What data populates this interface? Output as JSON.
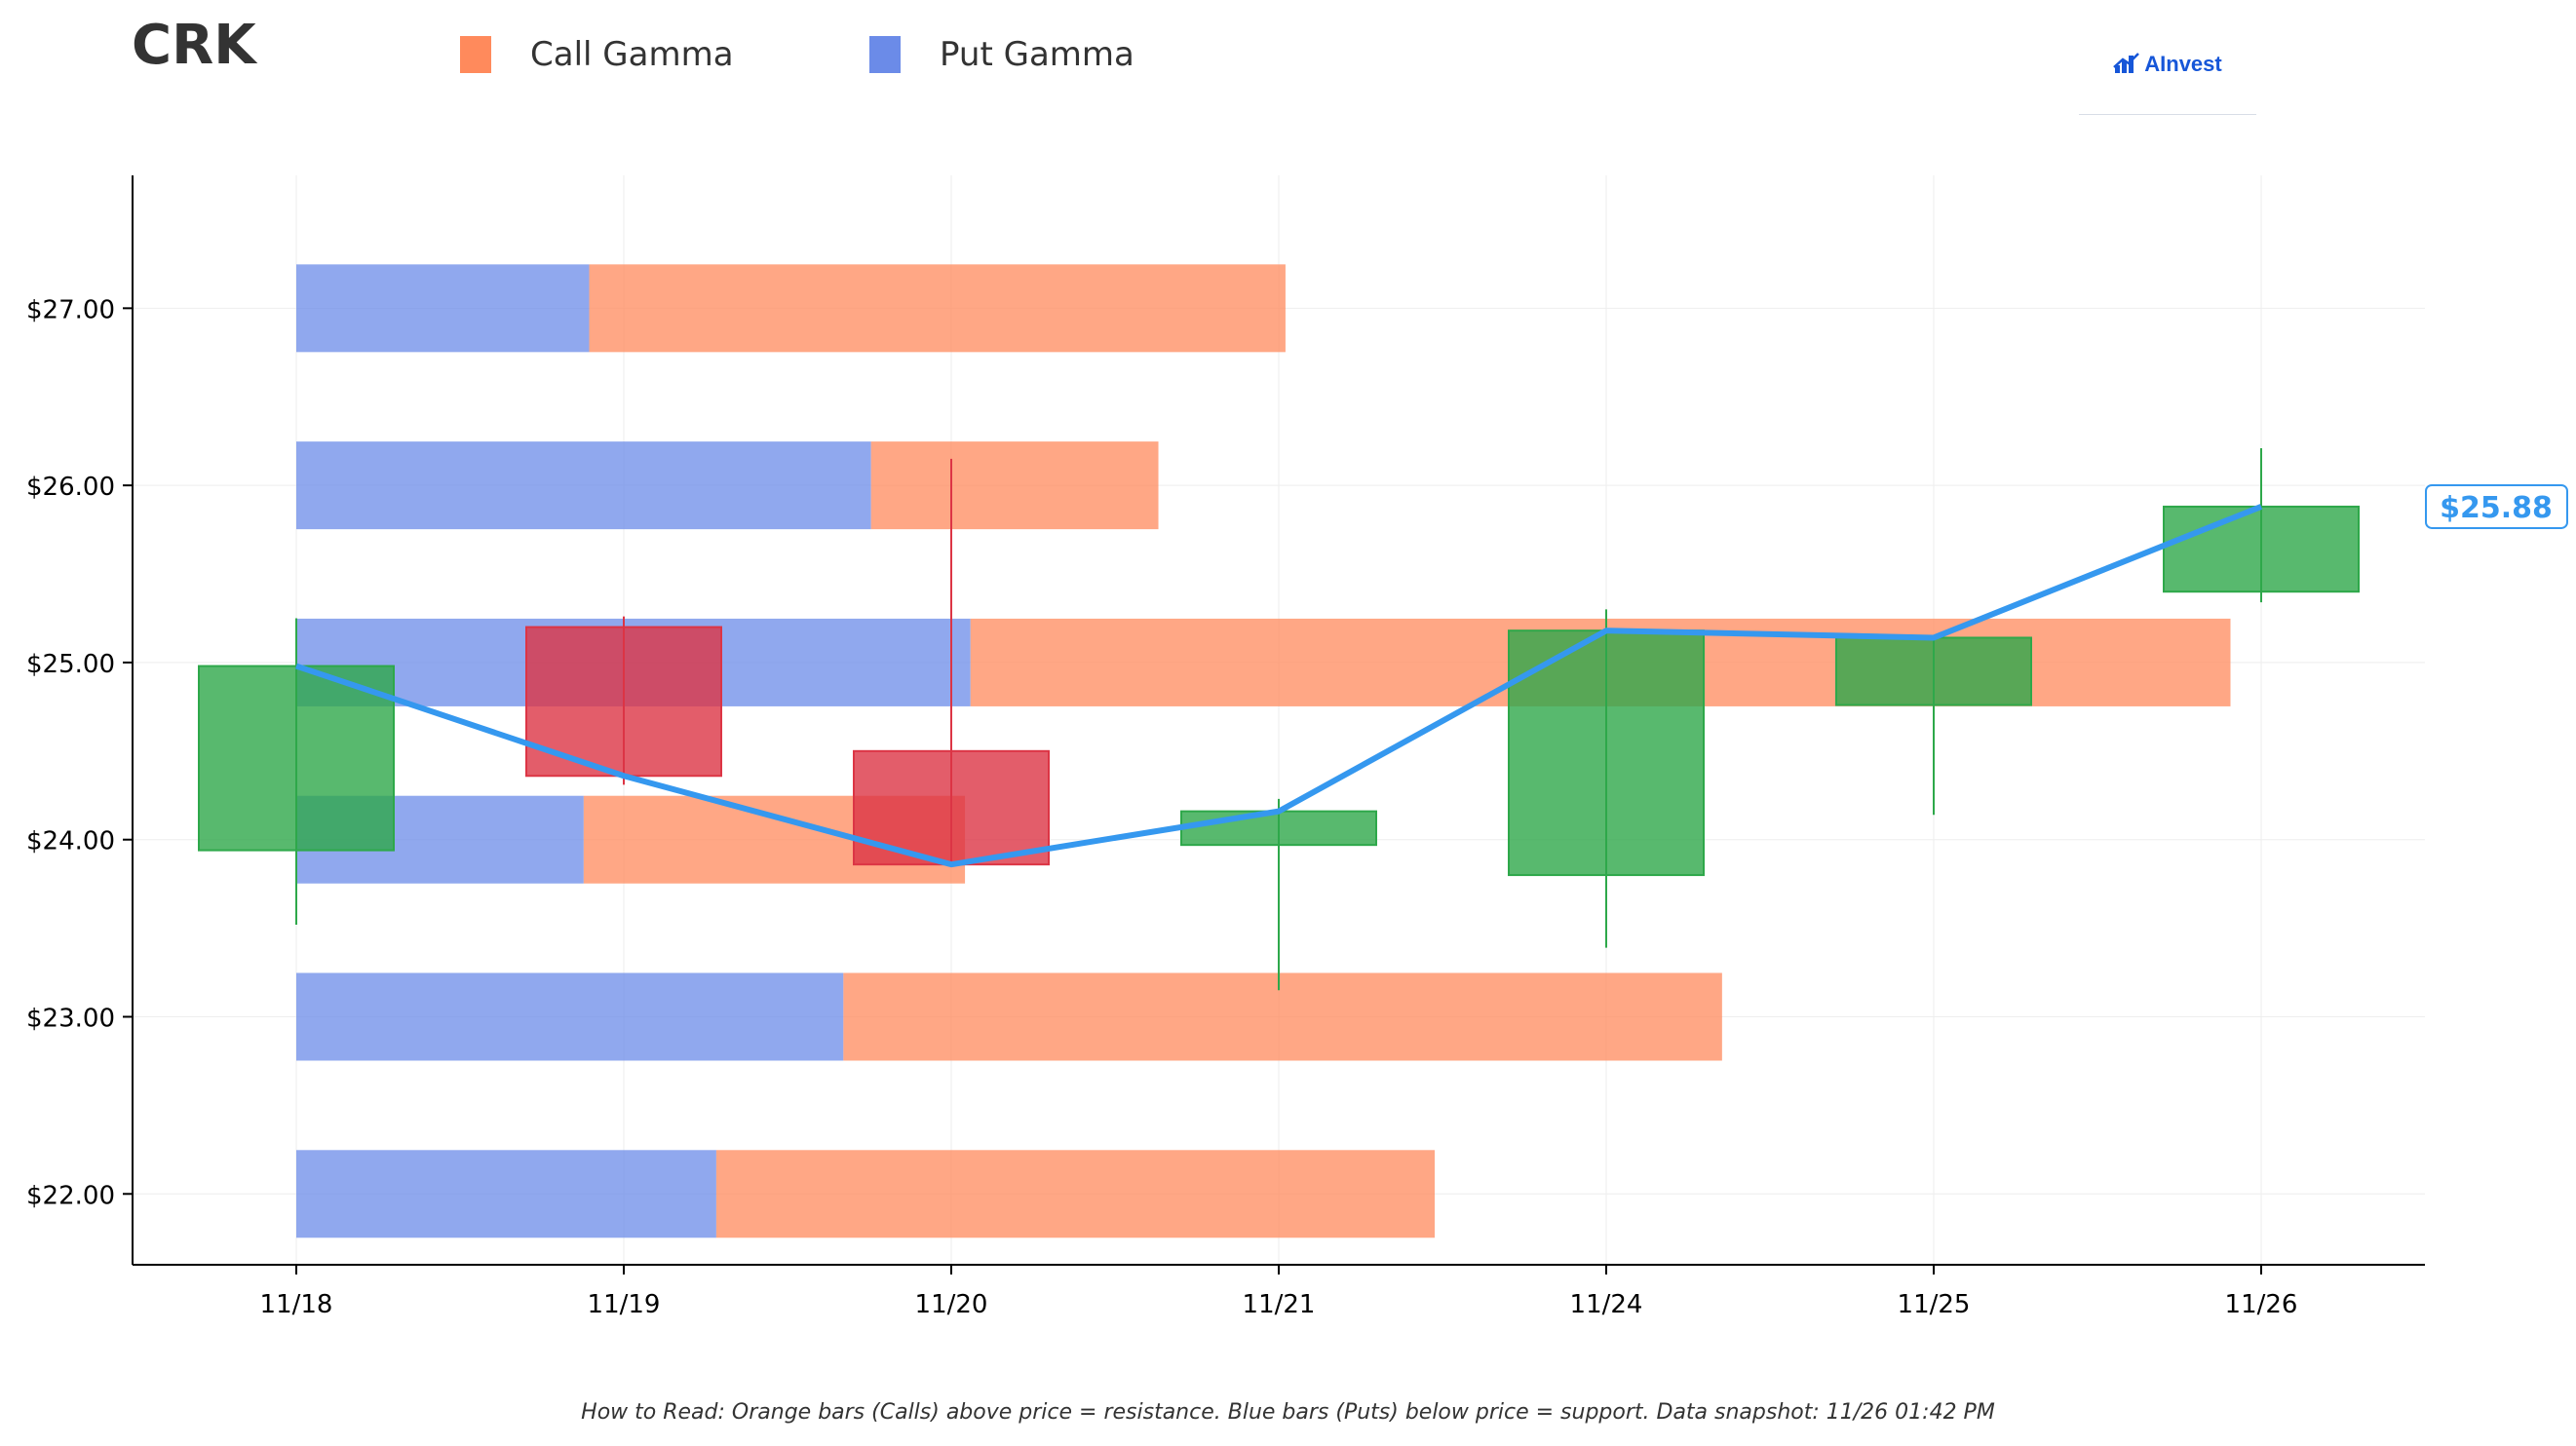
{
  "ticker": "CRK",
  "logo": {
    "text": "AInvest"
  },
  "legend": [
    {
      "label": "Call Gamma",
      "color": "#ff8a5c"
    },
    {
      "label": "Put Gamma",
      "color": "#6b8be8"
    }
  ],
  "footnote": "How to Read: Orange bars (Calls) above price = resistance. Blue bars (Puts) below price = support. Data snapshot: 11/26 01:42 PM",
  "chart_data": {
    "type": "candlestick",
    "categories": [
      "11/18",
      "11/19",
      "11/20",
      "11/21",
      "11/24",
      "11/25",
      "11/26"
    ],
    "ylim": [
      21.6,
      27.75
    ],
    "y_ticks": [
      22,
      23,
      24,
      25,
      26,
      27
    ],
    "y_tick_labels": [
      "$22.00",
      "$23.00",
      "$24.00",
      "$25.00",
      "$26.00",
      "$27.00"
    ],
    "candles": [
      {
        "date": "11/18",
        "open": 23.94,
        "high": 25.25,
        "low": 23.52,
        "close": 24.98
      },
      {
        "date": "11/19",
        "open": 25.2,
        "high": 25.26,
        "low": 24.31,
        "close": 24.36
      },
      {
        "date": "11/20",
        "open": 24.5,
        "high": 26.15,
        "low": 23.86,
        "close": 23.86
      },
      {
        "date": "11/21",
        "open": 23.97,
        "high": 24.23,
        "low": 23.15,
        "close": 24.16
      },
      {
        "date": "11/24",
        "open": 23.8,
        "high": 25.3,
        "low": 23.39,
        "close": 25.18
      },
      {
        "date": "11/25",
        "open": 24.76,
        "high": 25.15,
        "low": 24.14,
        "close": 25.14
      },
      {
        "date": "11/26",
        "open": 25.4,
        "high": 26.21,
        "low": 25.34,
        "close": 25.88
      }
    ],
    "price_line": [
      24.98,
      24.36,
      23.86,
      24.16,
      25.18,
      25.14,
      25.88
    ],
    "last_price_label": "$25.88",
    "gamma_strikes": [
      27,
      26,
      25,
      24,
      23,
      22
    ],
    "put_gamma": [
      0.53,
      1.04,
      1.22,
      0.52,
      0.99,
      0.76
    ],
    "call_gamma": [
      1.26,
      0.52,
      2.28,
      0.69,
      1.59,
      1.3
    ],
    "colors": {
      "call": "#ff8a5c",
      "put": "#6b8be8",
      "up": "#2ea84a",
      "down": "#dc3545",
      "line": "#3598ef"
    },
    "grid": true
  }
}
